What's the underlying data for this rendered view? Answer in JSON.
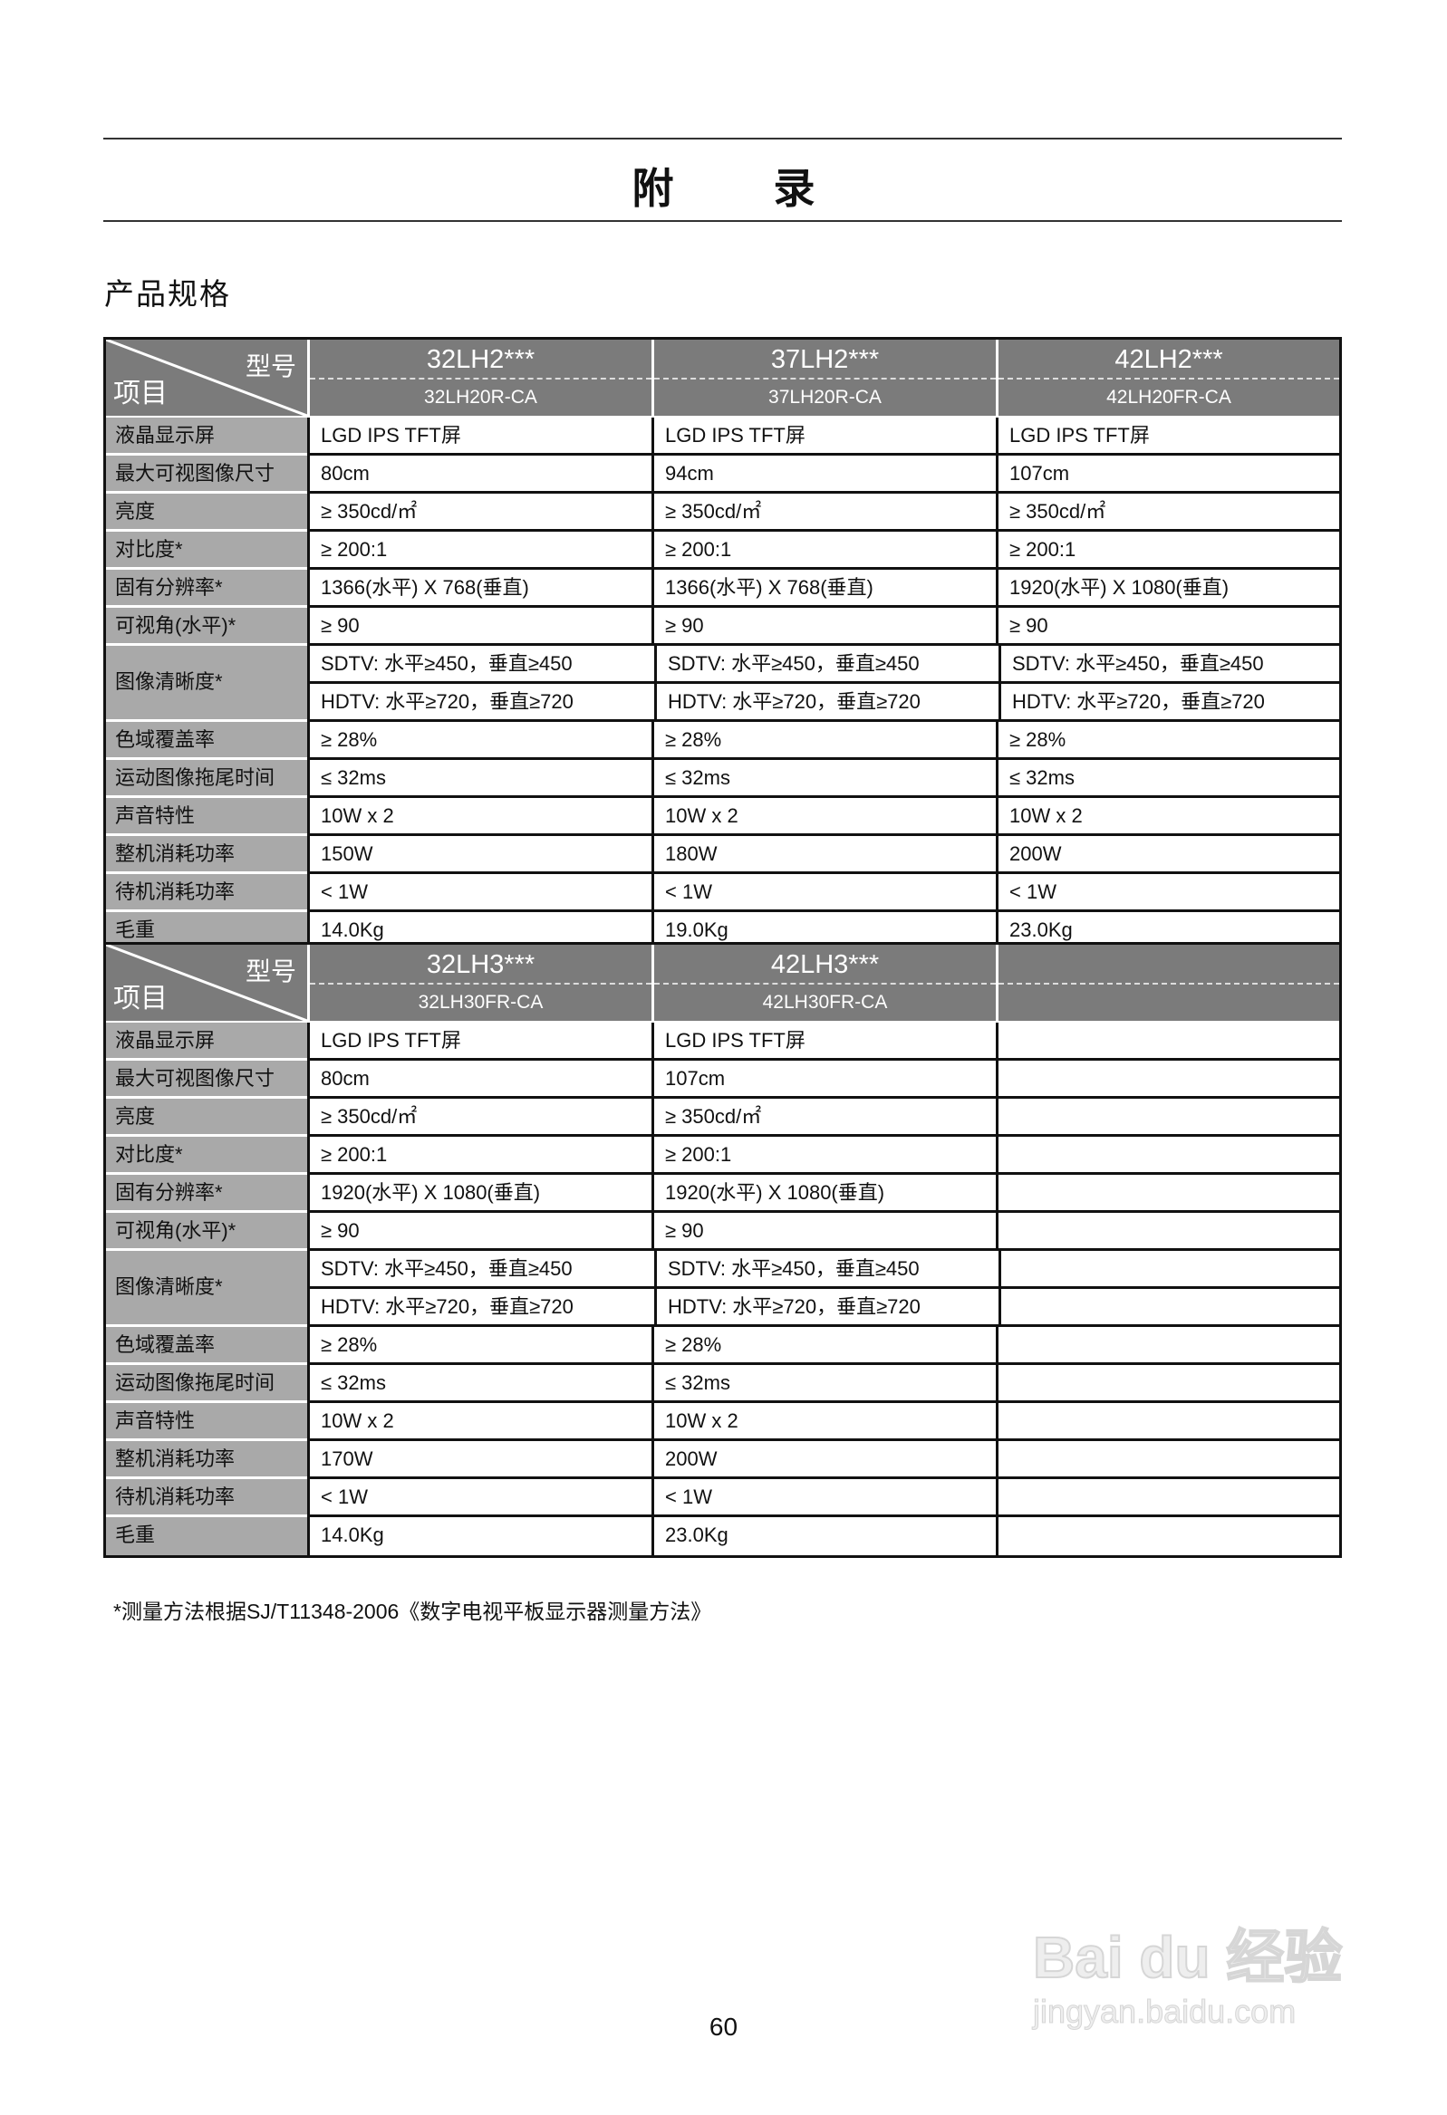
{
  "title": "附录",
  "section_title": "产品规格",
  "corner": {
    "model": "型号",
    "item": "项目"
  },
  "row_labels": [
    "液晶显示屏",
    "最大可视图像尺寸",
    "亮度",
    "对比度*",
    "固有分辨率*",
    "可视角(水平)*",
    "图像清晰度*",
    "色域覆盖率",
    "运动图像拖尾时间",
    "声音特性",
    "整机消耗功率",
    "待机消耗功率",
    "毛重"
  ],
  "tables": [
    {
      "models": [
        {
          "series": "32LH2***",
          "model": "32LH20R-CA"
        },
        {
          "series": "37LH2***",
          "model": "37LH20R-CA"
        },
        {
          "series": "42LH2***",
          "model": "42LH20FR-CA"
        }
      ],
      "values": [
        [
          "LGD IPS TFT屏",
          "80cm",
          "≥ 350cd/㎡",
          "≥ 200:1",
          "1366(水平) X 768(垂直)",
          "≥ 90",
          [
            "SDTV: 水平≥450，垂直≥450",
            "HDTV: 水平≥720，垂直≥720"
          ],
          "≥ 28%",
          "≤ 32ms",
          "10W x 2",
          "150W",
          "< 1W",
          "14.0Kg"
        ],
        [
          "LGD IPS TFT屏",
          "94cm",
          "≥ 350cd/㎡",
          "≥ 200:1",
          "1366(水平) X 768(垂直)",
          "≥ 90",
          [
            "SDTV: 水平≥450，垂直≥450",
            "HDTV: 水平≥720，垂直≥720"
          ],
          "≥ 28%",
          "≤ 32ms",
          "10W x 2",
          "180W",
          "< 1W",
          "19.0Kg"
        ],
        [
          "LGD IPS TFT屏",
          "107cm",
          "≥ 350cd/㎡",
          "≥ 200:1",
          "1920(水平) X 1080(垂直)",
          "≥ 90",
          [
            "SDTV: 水平≥450，垂直≥450",
            "HDTV: 水平≥720，垂直≥720"
          ],
          "≥ 28%",
          "≤ 32ms",
          "10W x 2",
          "200W",
          "< 1W",
          "23.0Kg"
        ]
      ]
    },
    {
      "models": [
        {
          "series": "32LH3***",
          "model": "32LH30FR-CA"
        },
        {
          "series": "42LH3***",
          "model": "42LH30FR-CA"
        },
        {
          "series": "",
          "model": ""
        }
      ],
      "values": [
        [
          "LGD IPS TFT屏",
          "80cm",
          "≥ 350cd/㎡",
          "≥ 200:1",
          "1920(水平) X 1080(垂直)",
          "≥ 90",
          [
            "SDTV: 水平≥450，垂直≥450",
            "HDTV: 水平≥720，垂直≥720"
          ],
          "≥ 28%",
          "≤ 32ms",
          "10W x 2",
          "170W",
          "< 1W",
          "14.0Kg"
        ],
        [
          "LGD IPS TFT屏",
          "107cm",
          "≥ 350cd/㎡",
          "≥ 200:1",
          "1920(水平) X 1080(垂直)",
          "≥ 90",
          [
            "SDTV: 水平≥450，垂直≥450",
            "HDTV: 水平≥720，垂直≥720"
          ],
          "≥ 28%",
          "≤ 32ms",
          "10W x 2",
          "200W",
          "< 1W",
          "23.0Kg"
        ],
        [
          "",
          "",
          "",
          "",
          "",
          "",
          [
            "",
            ""
          ],
          "",
          "",
          "",
          "",
          "",
          ""
        ]
      ]
    }
  ],
  "footnote": "*测量方法根据SJ/T11348-2006《数字电视平板显示器测量方法》",
  "page_number": "60",
  "watermark": {
    "logo": "Bai du 经验",
    "url": "jingyan.baidu.com"
  }
}
